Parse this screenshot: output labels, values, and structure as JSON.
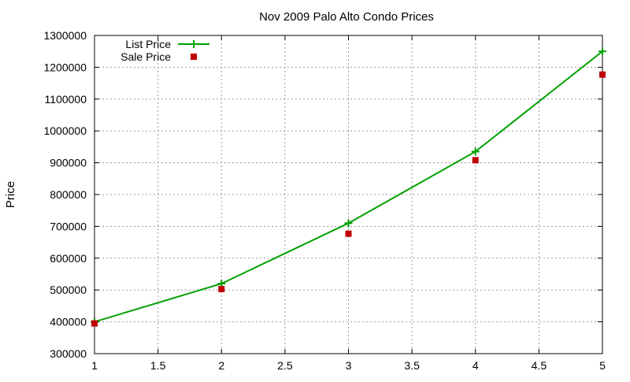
{
  "chart_data": {
    "type": "line",
    "title": "Nov 2009 Palo Alto Condo Prices",
    "xlabel": "",
    "ylabel": "Price",
    "xlim": [
      1,
      5
    ],
    "ylim": [
      300000,
      1300000
    ],
    "x_ticks": [
      "1",
      "1.5",
      "2",
      "2.5",
      "3",
      "3.5",
      "4",
      "4.5",
      "5"
    ],
    "y_ticks": [
      "300000",
      "400000",
      "500000",
      "600000",
      "700000",
      "800000",
      "900000",
      "1000000",
      "1100000",
      "1200000",
      "1300000"
    ],
    "grid": true,
    "legend_position": "top-left",
    "series": [
      {
        "name": "List Price",
        "style": "linespoints",
        "marker": "plus",
        "color": "#00a000",
        "x": [
          1,
          2,
          3,
          4,
          5
        ],
        "values": [
          400000,
          520000,
          710000,
          935000,
          1250000
        ]
      },
      {
        "name": "Sale Price",
        "style": "points",
        "marker": "square",
        "color": "#c00000",
        "x": [
          1,
          2,
          3,
          4,
          5
        ],
        "values": [
          395000,
          503000,
          677000,
          908000,
          1177000
        ]
      }
    ]
  }
}
